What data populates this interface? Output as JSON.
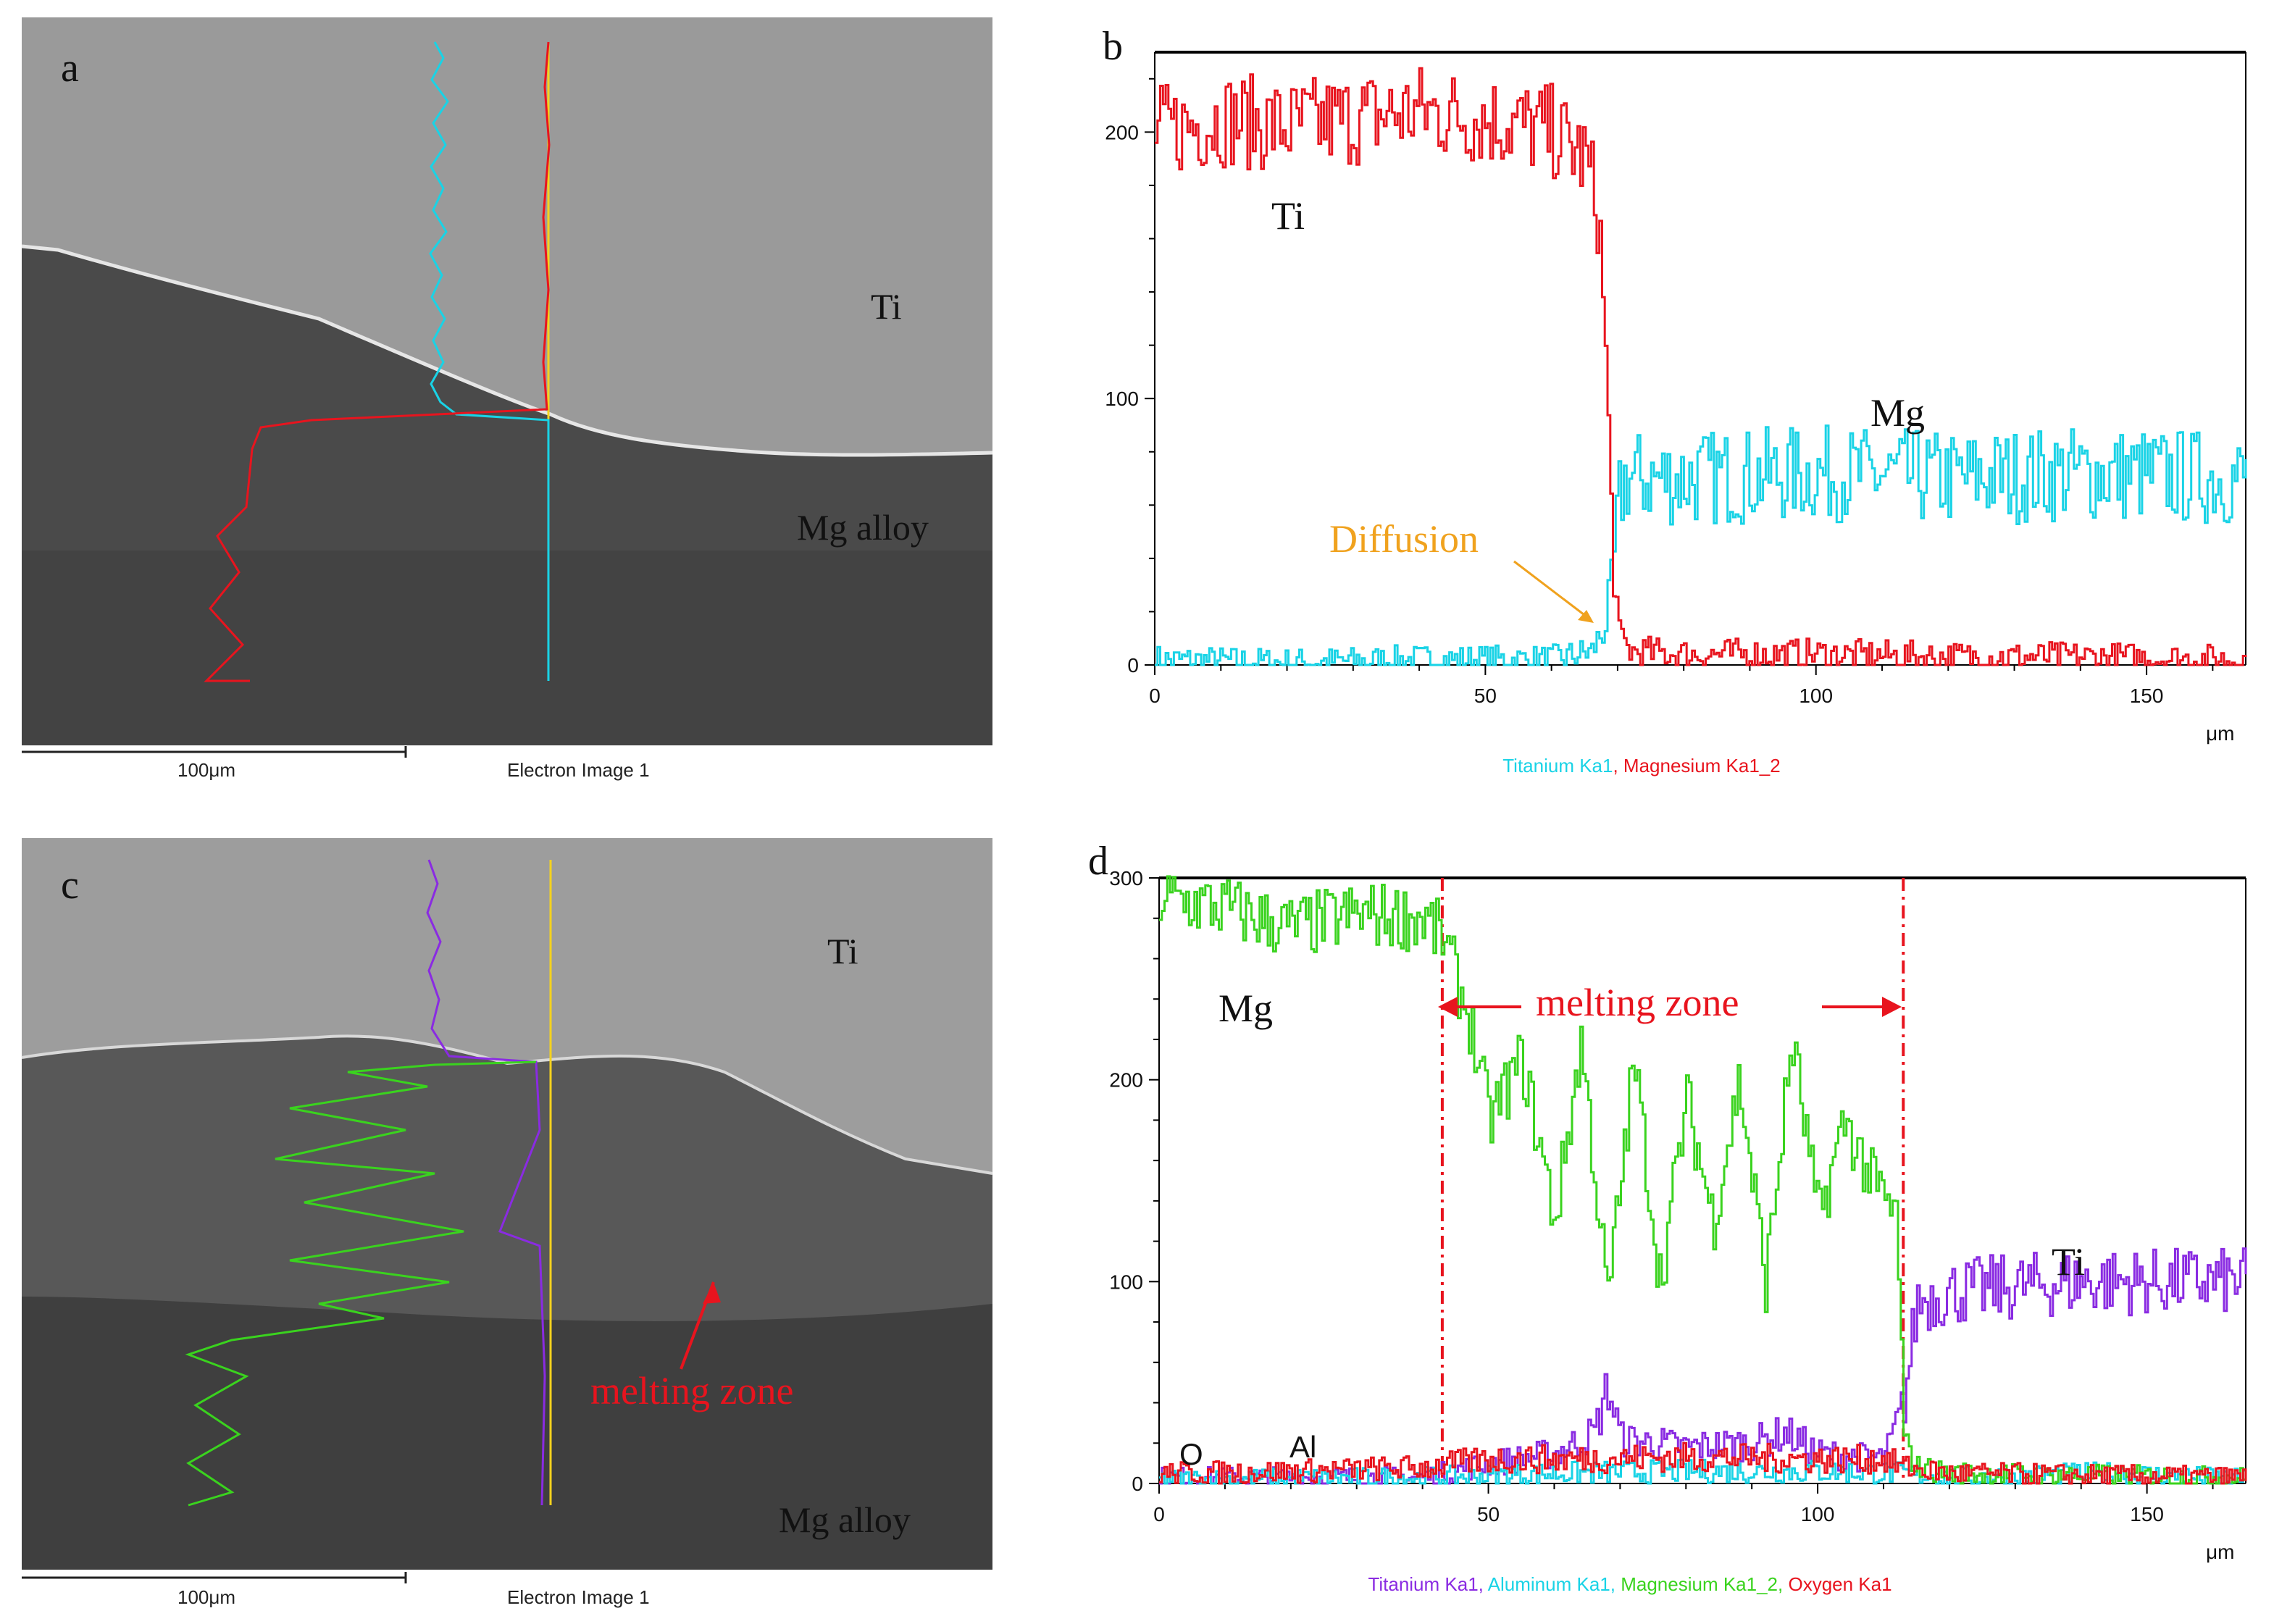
{
  "panels": {
    "a": {
      "letter": "a",
      "label_ti": "Ti",
      "label_mg": "Mg alloy",
      "scale": "100μm",
      "caption": "Electron Image 1"
    },
    "b": {
      "letter": "b",
      "label_ti": "Ti",
      "label_mg": "Mg",
      "annotation": "Diffusion",
      "unit": "μm",
      "legend": [
        "Titanium Ka1",
        ", ",
        "Magnesium Ka1_2"
      ]
    },
    "c": {
      "letter": "c",
      "label_ti": "Ti",
      "label_mg": "Mg alloy",
      "annotation": "melting zone",
      "scale": "100μm",
      "caption": "Electron Image 1"
    },
    "d": {
      "letter": "d",
      "label_mg": "Mg",
      "label_ti": "Ti",
      "label_o": "O",
      "label_al": "Al",
      "annotation": "melting zone",
      "unit": "μm",
      "legend": [
        "Titanium Ka1",
        ", ",
        "Aluminum Ka1",
        ", ",
        "Magnesium Ka1_2",
        ", ",
        "Oxygen Ka1"
      ]
    }
  },
  "colors": {
    "cyan": "#19d3e6",
    "red": "#e8141e",
    "green": "#3ad31e",
    "purple": "#8a2be2",
    "orange": "#f0a21e",
    "annot_red": "#e8141e"
  },
  "chart_data": [
    {
      "type": "line",
      "panel": "b",
      "xlabel": "μm",
      "ylabel": "",
      "xlim": [
        0,
        165
      ],
      "ylim": [
        0,
        230
      ],
      "xticks": [
        0,
        50,
        100,
        150
      ],
      "yticks": [
        0,
        100,
        200
      ],
      "series": [
        {
          "name": "Titanium Ka1",
          "color": "#19d3e6",
          "x": [
            0,
            20,
            40,
            60,
            66,
            68,
            69,
            70,
            71,
            80,
            100,
            120,
            140,
            165
          ],
          "y": [
            2,
            1,
            2,
            2,
            5,
            15,
            30,
            60,
            70,
            70,
            72,
            70,
            72,
            70
          ]
        },
        {
          "name": "Magnesium Ka1_2",
          "color": "#e8141e",
          "x": [
            0,
            10,
            20,
            30,
            40,
            50,
            60,
            65,
            67,
            68,
            69,
            70,
            72,
            80,
            100,
            120,
            140,
            165
          ],
          "y": [
            200,
            205,
            202,
            205,
            208,
            205,
            200,
            190,
            170,
            120,
            50,
            10,
            5,
            4,
            4,
            3,
            3,
            2
          ]
        }
      ]
    },
    {
      "type": "line",
      "panel": "d",
      "xlabel": "μm",
      "ylabel": "",
      "xlim": [
        0,
        165
      ],
      "ylim": [
        0,
        300
      ],
      "xticks": [
        0,
        50,
        100,
        150
      ],
      "yticks": [
        0,
        100,
        200,
        300
      ],
      "markers": [
        43,
        113
      ],
      "series": [
        {
          "name": "Titanium Ka1",
          "color": "#8a2be2",
          "x": [
            0,
            40,
            50,
            60,
            66,
            68,
            70,
            80,
            90,
            95,
            100,
            110,
            113,
            115,
            120,
            140,
            165
          ],
          "y": [
            3,
            3,
            10,
            15,
            25,
            48,
            22,
            18,
            20,
            25,
            15,
            12,
            40,
            90,
            95,
            100,
            100
          ]
        },
        {
          "name": "Aluminum Ka1",
          "color": "#19d3e6",
          "x": [
            0,
            40,
            60,
            80,
            100,
            113,
            120,
            145,
            165
          ],
          "y": [
            2,
            3,
            5,
            6,
            6,
            5,
            3,
            5,
            2
          ]
        },
        {
          "name": "Magnesium Ka1_2",
          "color": "#3ad31e",
          "x": [
            0,
            10,
            20,
            30,
            40,
            43,
            47,
            50,
            55,
            60,
            64,
            68,
            72,
            76,
            80,
            84,
            88,
            92,
            96,
            100,
            104,
            108,
            112,
            113,
            115,
            120,
            140,
            165
          ],
          "y": [
            290,
            285,
            275,
            282,
            280,
            270,
            230,
            180,
            210,
            130,
            220,
            90,
            210,
            100,
            190,
            130,
            200,
            100,
            220,
            130,
            180,
            150,
            130,
            20,
            8,
            5,
            4,
            3
          ]
        },
        {
          "name": "Oxygen Ka1",
          "color": "#e8141e",
          "x": [
            0,
            20,
            40,
            50,
            60,
            80,
            100,
            110,
            113,
            120,
            140,
            165
          ],
          "y": [
            5,
            6,
            8,
            12,
            12,
            13,
            12,
            12,
            8,
            5,
            4,
            3
          ]
        }
      ]
    }
  ]
}
